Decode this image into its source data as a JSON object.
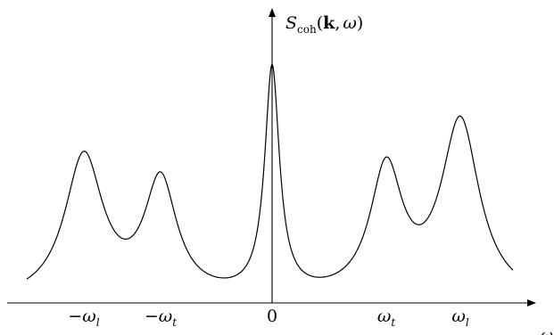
{
  "y_axis_label": {
    "symbol": "S",
    "subscript": "coh",
    "open": "(",
    "k": "k",
    "comma": ",",
    "omega": "ω",
    "close": ")"
  },
  "x_axis_label": "ω",
  "tick_labels": [
    {
      "sign": "−",
      "symbol": "ω",
      "sub": "l"
    },
    {
      "sign": "−",
      "symbol": "ω",
      "sub": "t"
    },
    {
      "sign": "",
      "symbol": "0",
      "sub": ""
    },
    {
      "sign": "",
      "symbol": "ω",
      "sub": "t"
    },
    {
      "sign": "",
      "symbol": "ω",
      "sub": "l"
    }
  ],
  "peaks": [
    {
      "position": "-omega_l",
      "relative_height": 0.63
    },
    {
      "position": "-omega_t",
      "relative_height": 0.51
    },
    {
      "position": "0",
      "relative_height": 1.0
    },
    {
      "position": "omega_t",
      "relative_height": 0.56
    },
    {
      "position": "omega_l",
      "relative_height": 0.78
    }
  ]
}
